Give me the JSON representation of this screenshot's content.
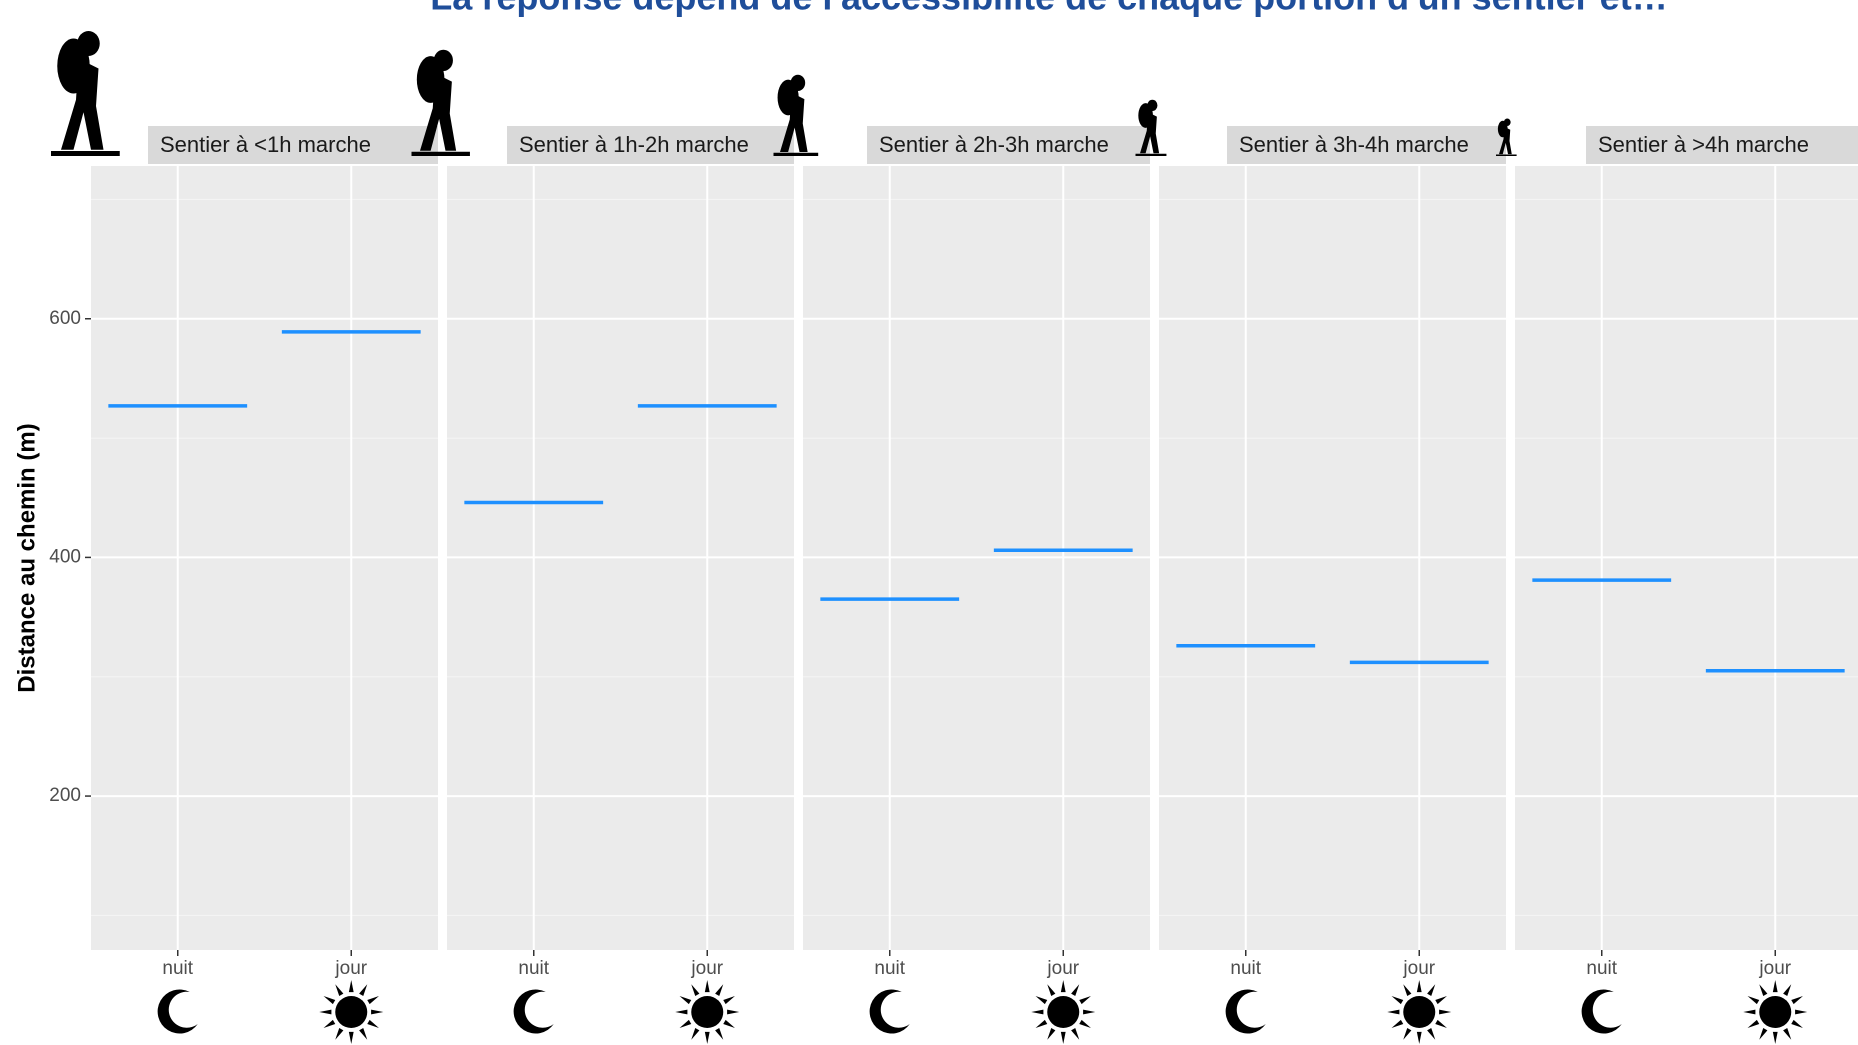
{
  "chart_data": {
    "type": "segment",
    "title": "La réponse dépend de l'accessibilité de chaque portion d'un sentier et…",
    "ylabel": "Distance au chemin (m)",
    "categories": [
      "nuit",
      "jour"
    ],
    "color": "#1e90ff",
    "ylim": [
      71,
      728
    ],
    "yticks": [
      200,
      400,
      600
    ],
    "grid": true,
    "facets": [
      {
        "name": "Sentier à <1h marche",
        "values": [
          527,
          589
        ]
      },
      {
        "name": "Sentier à 1h-2h marche",
        "values": [
          446,
          527
        ]
      },
      {
        "name": "Sentier à 2h-3h marche",
        "values": [
          365,
          406
        ]
      },
      {
        "name": "Sentier à 3h-4h marche",
        "values": [
          326,
          312
        ]
      },
      {
        "name": "Sentier à >4h marche",
        "values": [
          381,
          305
        ]
      }
    ]
  }
}
